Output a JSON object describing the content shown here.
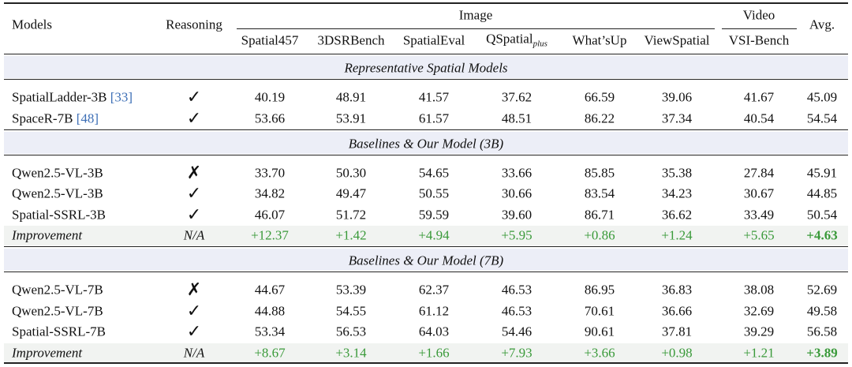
{
  "header": {
    "models": "Models",
    "reasoning": "Reasoning",
    "groups": [
      "Image",
      "Video"
    ],
    "avg": "Avg.",
    "columns": [
      {
        "text": "Spatial457"
      },
      {
        "text": "3DSRBench"
      },
      {
        "text": "SpatialEval"
      },
      {
        "text": "QSpatial",
        "sub": "plus"
      },
      {
        "text": "What’sUp"
      },
      {
        "text": "ViewSpatial"
      },
      {
        "text": "VSI-Bench"
      }
    ]
  },
  "sections": [
    {
      "title": "Representative Spatial Models",
      "rows": [
        {
          "model": "SpatialLadder-3B",
          "cite": "[33]",
          "reasoning": "✓",
          "values": [
            "40.19",
            "48.91",
            "41.57",
            "37.62",
            "66.59",
            "39.06",
            "41.67",
            "45.09"
          ]
        },
        {
          "model": "SpaceR-7B",
          "cite": "[48]",
          "reasoning": "✓",
          "values": [
            "53.66",
            "53.91",
            "61.57",
            "48.51",
            "86.22",
            "37.34",
            "40.54",
            "54.54"
          ]
        }
      ]
    },
    {
      "title": "Baselines & Our Model (3B)",
      "rows": [
        {
          "model": "Qwen2.5-VL-3B",
          "reasoning": "✗",
          "values": [
            "33.70",
            "50.30",
            "54.65",
            "33.66",
            "85.85",
            "35.38",
            "27.84",
            "45.91"
          ]
        },
        {
          "model": "Qwen2.5-VL-3B",
          "reasoning": "✓",
          "values": [
            "34.82",
            "49.47",
            "50.55",
            "30.66",
            "83.54",
            "34.23",
            "30.67",
            "44.85"
          ]
        },
        {
          "model": "Spatial-SSRL-3B",
          "reasoning": "✓",
          "values": [
            "46.07",
            "51.72",
            "59.59",
            "39.60",
            "86.71",
            "36.62",
            "33.49",
            "50.54"
          ]
        },
        {
          "model": "Improvement",
          "reasoning": "N/A",
          "improvement": true,
          "values": [
            "+12.37",
            "+1.42",
            "+4.94",
            "+5.95",
            "+0.86",
            "+1.24",
            "+5.65",
            "+4.63"
          ]
        }
      ]
    },
    {
      "title": "Baselines & Our Model (7B)",
      "rows": [
        {
          "model": "Qwen2.5-VL-7B",
          "reasoning": "✗",
          "values": [
            "44.67",
            "53.39",
            "62.37",
            "46.53",
            "86.95",
            "36.83",
            "38.08",
            "52.69"
          ]
        },
        {
          "model": "Qwen2.5-VL-7B",
          "reasoning": "✓",
          "values": [
            "44.88",
            "54.55",
            "61.12",
            "46.53",
            "70.61",
            "36.66",
            "32.69",
            "49.58"
          ]
        },
        {
          "model": "Spatial-SSRL-7B",
          "reasoning": "✓",
          "values": [
            "53.34",
            "56.53",
            "64.03",
            "54.46",
            "90.61",
            "37.81",
            "39.29",
            "56.58"
          ]
        },
        {
          "model": "Improvement",
          "reasoning": "N/A",
          "improvement": true,
          "values": [
            "+8.67",
            "+3.14",
            "+1.66",
            "+7.93",
            "+3.66",
            "+0.98",
            "+1.21",
            "+3.89"
          ]
        }
      ]
    }
  ]
}
